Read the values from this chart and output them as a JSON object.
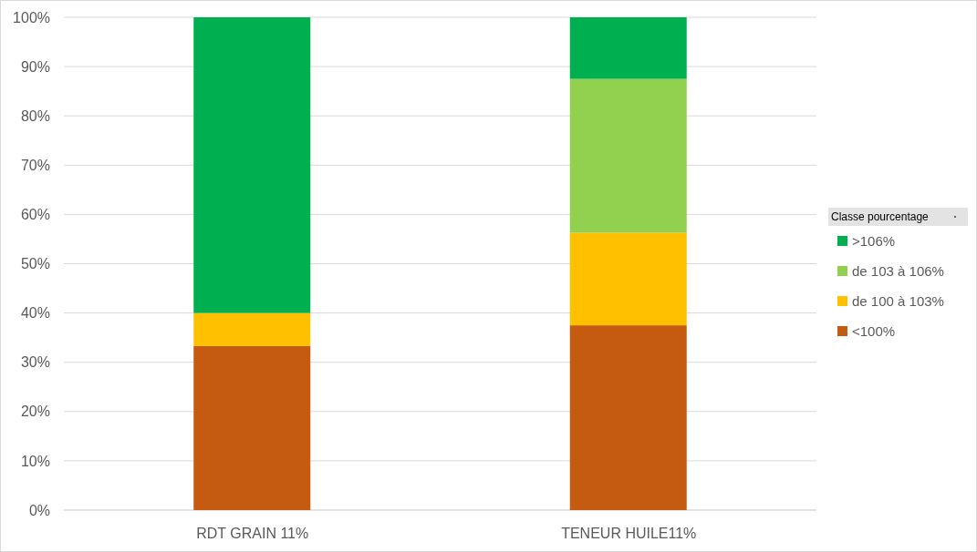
{
  "chart_data": {
    "type": "bar",
    "stacked": true,
    "categories": [
      "RDT GRAIN 11%",
      "TENEUR HUILE11%"
    ],
    "series": [
      {
        "name": "<100%",
        "color": "#c55a11",
        "values": [
          33.3,
          37.5
        ]
      },
      {
        "name": "de 100 à 103%",
        "color": "#ffc000",
        "values": [
          6.7,
          18.8
        ]
      },
      {
        "name": "de 103 à 106%",
        "color": "#92d050",
        "values": [
          0,
          31.2
        ]
      },
      {
        "name": ">106%",
        "color": "#00b050",
        "values": [
          60,
          12.5
        ]
      }
    ],
    "ylim": [
      0,
      100
    ],
    "yticks": [
      {
        "value": 0,
        "label": "0%"
      },
      {
        "value": 10,
        "label": "10%"
      },
      {
        "value": 20,
        "label": "20%"
      },
      {
        "value": 30,
        "label": "30%"
      },
      {
        "value": 40,
        "label": "40%"
      },
      {
        "value": 50,
        "label": "50%"
      },
      {
        "value": 60,
        "label": "60%"
      },
      {
        "value": 70,
        "label": "70%"
      },
      {
        "value": 80,
        "label": "80%"
      },
      {
        "value": 90,
        "label": "90%"
      },
      {
        "value": 100,
        "label": "100%"
      }
    ],
    "grid": "y",
    "legend": "right",
    "legend_title": "Classe pourcentage"
  }
}
